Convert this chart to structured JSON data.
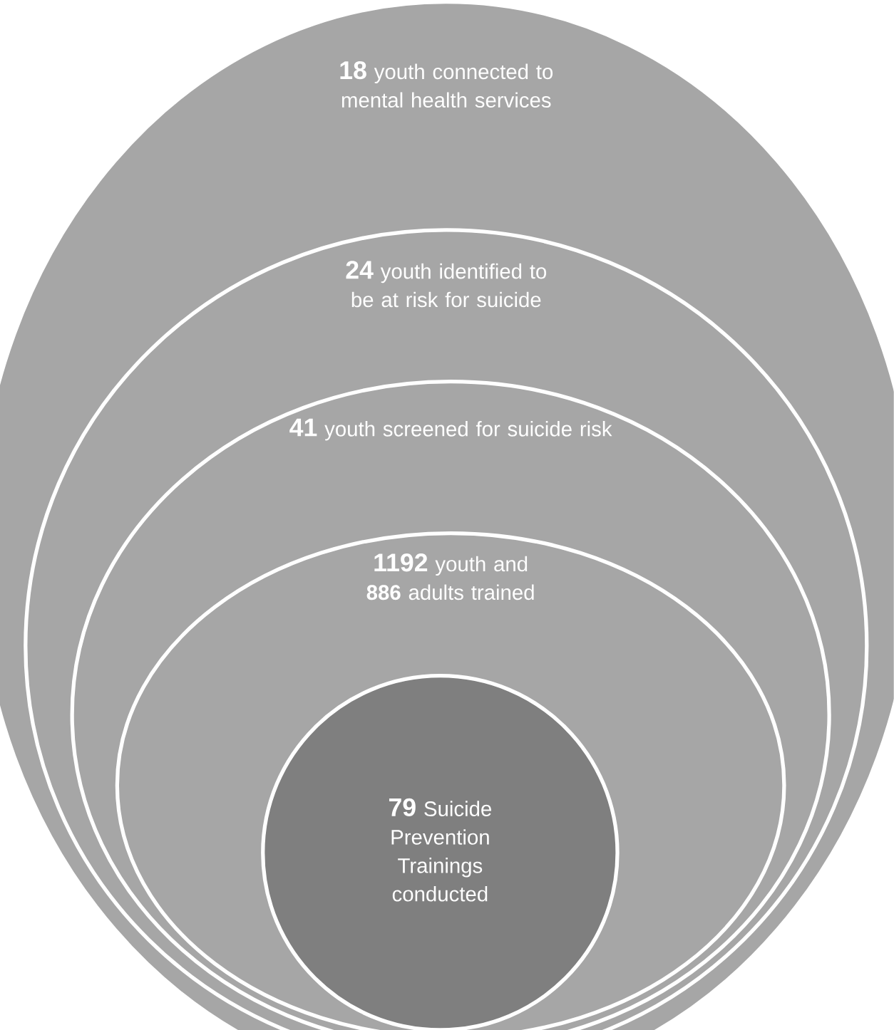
{
  "chart_data": {
    "type": "other",
    "categories": [
      "youth connected to mental health services",
      "youth identified to be at risk for suicide",
      "youth screened for suicide risk",
      "youth and **886** adults trained",
      "Suicide Prevention Trainings conducted"
    ],
    "values": [
      18,
      24,
      41,
      1192,
      79
    ],
    "data_labels": true,
    "colors": [
      "#a6a6a6",
      "#a6a6a6",
      "#a6a6a6",
      "#a6a6a6",
      "#7f7f7f"
    ]
  }
}
